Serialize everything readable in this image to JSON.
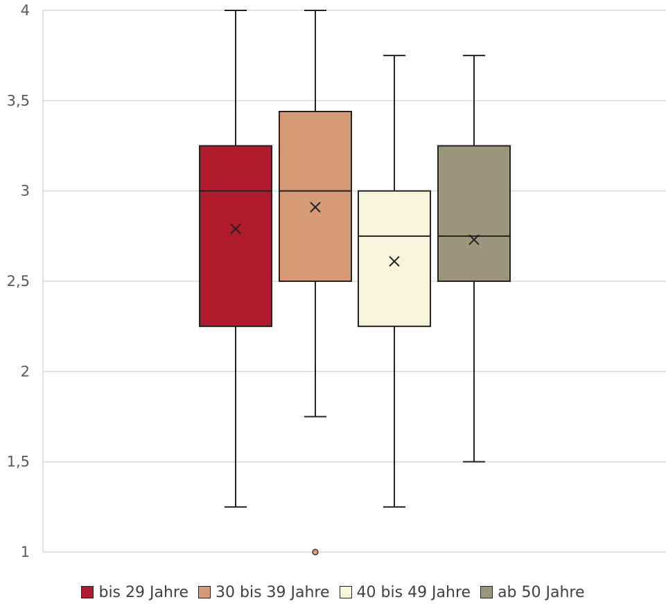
{
  "chart_data": {
    "type": "box",
    "title": "",
    "xlabel": "",
    "ylabel": "",
    "ylim": [
      1,
      4
    ],
    "yticks": [
      "1",
      "1,5",
      "2",
      "2,5",
      "3",
      "3,5",
      "4"
    ],
    "ytick_values": [
      1,
      1.5,
      2,
      2.5,
      3,
      3.5,
      4
    ],
    "grid": "horizontal",
    "legend_position": "bottom",
    "series": [
      {
        "name": "bis 29 Jahre",
        "color": "#b01c2e",
        "min": 1.25,
        "q1": 2.25,
        "median": 3.0,
        "q3": 3.25,
        "max": 4.0,
        "mean": 2.79,
        "outliers": []
      },
      {
        "name": "30 bis 39 Jahre",
        "color": "#d69a76",
        "min": 1.75,
        "q1": 2.5,
        "median": 3.0,
        "q3": 3.44,
        "max": 4.0,
        "mean": 2.91,
        "outliers": [
          1.0
        ]
      },
      {
        "name": "40 bis 49 Jahre",
        "color": "#f7f4dc",
        "min": 1.25,
        "q1": 2.25,
        "median": 2.75,
        "q3": 3.0,
        "max": 3.75,
        "mean": 2.61,
        "outliers": []
      },
      {
        "name": "ab 50 Jahre",
        "color": "#9b977d",
        "min": 1.5,
        "q1": 2.5,
        "median": 2.75,
        "q3": 3.25,
        "max": 3.75,
        "mean": 2.73,
        "outliers": []
      }
    ]
  }
}
